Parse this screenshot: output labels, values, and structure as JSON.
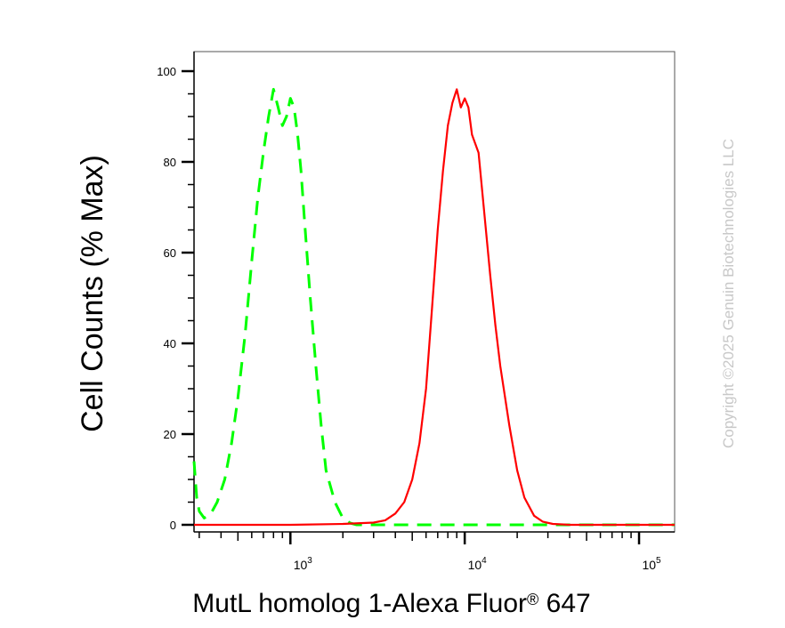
{
  "chart_data": {
    "type": "line",
    "x_scale": "log",
    "y_axis_label": "Cell Counts (% Max)",
    "x_axis_label": {
      "main": "MutL homolog 1-Alexa Fluor",
      "registered": "®",
      "suffix": " 647"
    },
    "ylim": [
      0,
      100
    ],
    "xlim": [
      280,
      160000
    ],
    "y_ticks": [
      "0",
      "20",
      "40",
      "60",
      "80",
      "100"
    ],
    "x_ticks": [
      {
        "base": "10",
        "exp": "3"
      },
      {
        "base": "10",
        "exp": "4"
      },
      {
        "base": "10",
        "exp": "5"
      }
    ],
    "grid": false,
    "legend": "none",
    "copyright": "Copyright ©2025 Genuin Biotechnologies LLC",
    "series": [
      {
        "color": "#00ff00",
        "style": "dashed",
        "x": [
          280,
          290,
          300,
          320,
          350,
          380,
          420,
          460,
          500,
          550,
          600,
          650,
          700,
          750,
          800,
          850,
          900,
          950,
          1000,
          1050,
          1100,
          1150,
          1200,
          1300,
          1400,
          1500,
          1600,
          1800,
          2000,
          2200,
          2400,
          3000,
          5000,
          10000,
          30000,
          160000
        ],
        "y": [
          14,
          6,
          3,
          1.5,
          2.5,
          5,
          10,
          18,
          28,
          42,
          58,
          72,
          82,
          90,
          96,
          92,
          88,
          90,
          94,
          92,
          86,
          78,
          68,
          50,
          35,
          22,
          12,
          5,
          1.5,
          0.4,
          0,
          0,
          0,
          0,
          0,
          0
        ]
      },
      {
        "color": "#ff0000",
        "style": "solid",
        "x": [
          280,
          1000,
          2000,
          3000,
          3500,
          4000,
          4500,
          5000,
          5500,
          6000,
          6500,
          7000,
          7500,
          8000,
          8500,
          9000,
          9500,
          10000,
          10500,
          11000,
          12000,
          13000,
          14000,
          15000,
          16000,
          18000,
          20000,
          22000,
          25000,
          28000,
          32000,
          40000,
          160000
        ],
        "y": [
          0,
          0,
          0.2,
          0.5,
          1,
          2.5,
          5,
          10,
          18,
          30,
          48,
          65,
          78,
          88,
          93,
          96,
          92,
          94,
          92,
          86,
          82,
          68,
          55,
          44,
          35,
          22,
          12,
          6,
          2,
          0.7,
          0.2,
          0,
          0
        ]
      }
    ]
  }
}
